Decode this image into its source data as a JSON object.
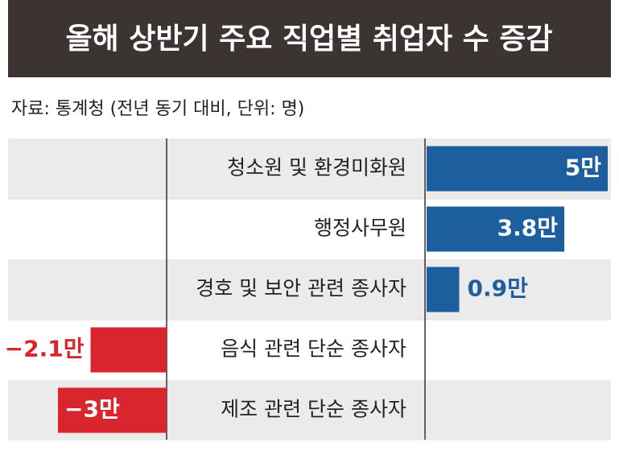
{
  "chart_data": {
    "type": "diverging-bar",
    "title": "올해 상반기 주요 직업별 취업자 수 증감",
    "subtitle": "자료: 통계청 (전년 동기 대비, 단위: 명)",
    "categories": [
      "청소원 및 환경미화원",
      "행정사무원",
      "경호 및 보안 관련 종사자",
      "음식 관련 단순 종사자",
      "제조 관련 단순 종사자"
    ],
    "values": [
      5,
      3.8,
      0.9,
      -2.1,
      -3
    ],
    "value_labels": [
      "5만",
      "3.8만",
      "0.9만",
      "−2.1만",
      "−3만"
    ],
    "color": "#1d5e9f",
    "negative_color": "#d9262e"
  }
}
